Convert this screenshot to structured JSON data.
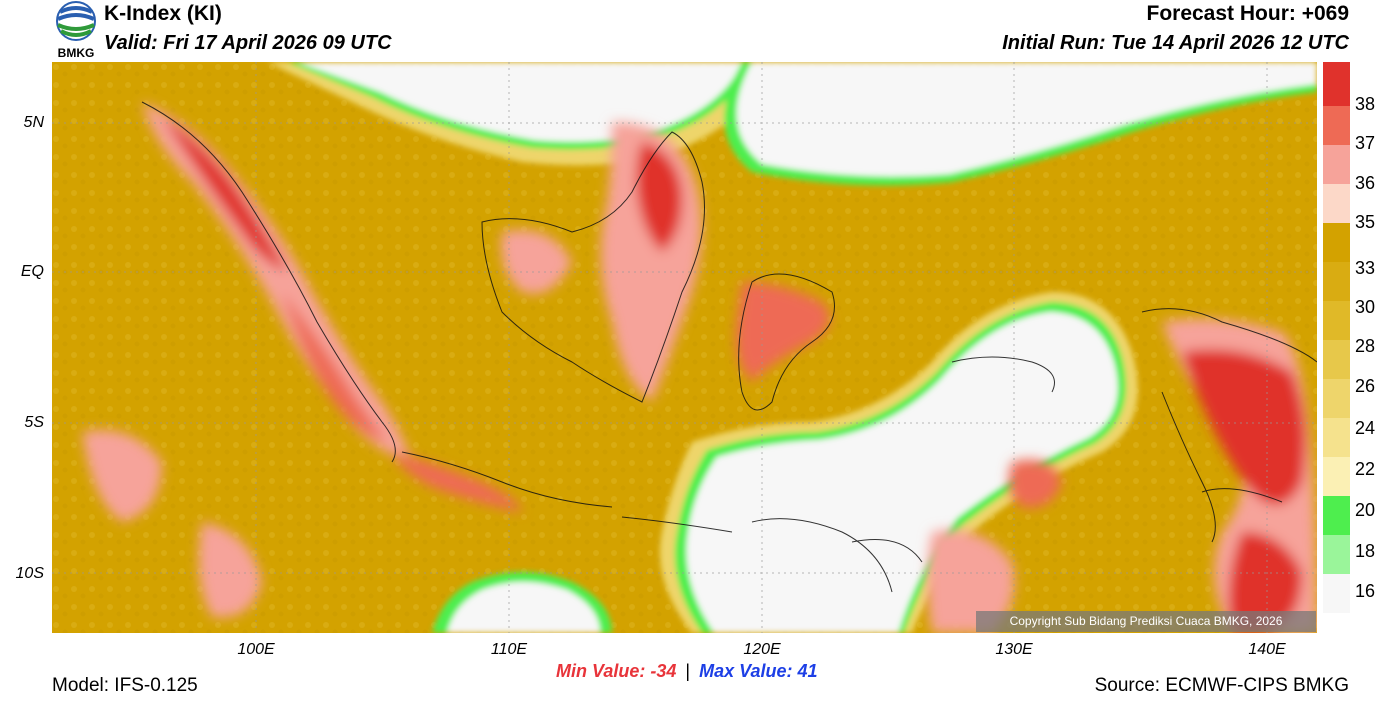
{
  "header": {
    "title": "K-Index (KI)",
    "valid": "Valid: Fri 17 April 2026 09 UTC",
    "forecast_hour": "Forecast Hour: +069",
    "initial_run": "Initial Run: Tue 14 April 2026 12 UTC"
  },
  "logo": {
    "text": "BMKG"
  },
  "axes": {
    "y_labels": [
      "5N",
      "EQ",
      "5S",
      "10S"
    ],
    "x_labels": [
      "100E",
      "110E",
      "120E",
      "130E",
      "140E"
    ]
  },
  "colorbar": {
    "labels": [
      "38",
      "37",
      "36",
      "35",
      "33",
      "30",
      "28",
      "26",
      "24",
      "22",
      "20",
      "18",
      "16"
    ],
    "colors": [
      "#e0322c",
      "#ee6a55",
      "#f6a39a",
      "#fcd8c8",
      "#d3a200",
      "#d9ac12",
      "#e0b928",
      "#e7c84a",
      "#eed56b",
      "#f5e28d",
      "#fbf0b4",
      "#4eee4e",
      "#9af59a",
      "#f7f7f7"
    ]
  },
  "stats": {
    "min_label": "Min Value:",
    "min_value": "-34",
    "separator": "|",
    "max_label": "Max Value:",
    "max_value": "41"
  },
  "footer": {
    "model": "Model: IFS-0.125",
    "source": "Source: ECMWF-CIPS BMKG",
    "copyright": "Copyright Sub Bidang Prediksi Cuaca BMKG, 2026"
  }
}
